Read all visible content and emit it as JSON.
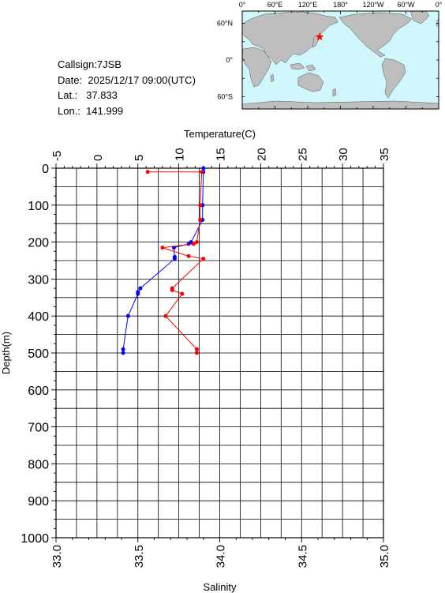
{
  "station": {
    "callsign_label": "Callsign:",
    "callsign": "7JSB",
    "date_label": "Date:",
    "date": "2025/12/17 09:00(UTC)",
    "lat_label": "Lat.:",
    "lat": "37.833",
    "lon_label": "Lon.:",
    "lon": "141.999"
  },
  "map": {
    "lon_labels": [
      "0°",
      "60°E",
      "120°E",
      "180°",
      "120°W",
      "60°W",
      "0°"
    ],
    "lat_labels": [
      "60°N",
      "0°",
      "60°S"
    ],
    "ocean_color": "#cff6fb",
    "land_color": "#bebebe",
    "marker": {
      "lat": 37.833,
      "lon": 141.999,
      "color": "#ff0000"
    }
  },
  "chart_data": {
    "type": "line",
    "title": "",
    "x_top_label": "Temperature(C)",
    "x_bottom_label": "Salinity",
    "ylabel": "Depth(m)",
    "temperature_ticks": [
      "-5",
      "0",
      "5",
      "10",
      "15",
      "20",
      "25",
      "30",
      "35"
    ],
    "salinity_ticks": [
      "33.0",
      "33.5",
      "34.0",
      "34.5",
      "35.0"
    ],
    "depth_ticks": [
      "0",
      "100",
      "200",
      "300",
      "400",
      "500",
      "600",
      "700",
      "800",
      "900",
      "1000"
    ],
    "temperature_range": [
      -5,
      35
    ],
    "salinity_range": [
      33.0,
      35.0
    ],
    "depth_range": [
      0,
      1000
    ],
    "depth_inverted": true,
    "grid": true,
    "series": [
      {
        "key": "temperature",
        "axis": "top",
        "color": "#0000ff",
        "points": [
          {
            "x": 13.0,
            "y": 0
          },
          {
            "x": 13.0,
            "y": 10
          },
          {
            "x": 12.9,
            "y": 100
          },
          {
            "x": 12.9,
            "y": 140
          },
          {
            "x": 11.5,
            "y": 200
          },
          {
            "x": 11.2,
            "y": 205
          },
          {
            "x": 9.4,
            "y": 215
          },
          {
            "x": 9.5,
            "y": 240
          },
          {
            "x": 9.5,
            "y": 245
          },
          {
            "x": 5.3,
            "y": 325
          },
          {
            "x": 5.0,
            "y": 335
          },
          {
            "x": 5.0,
            "y": 340
          },
          {
            "x": 3.8,
            "y": 400
          },
          {
            "x": 3.2,
            "y": 490
          },
          {
            "x": 3.2,
            "y": 500
          }
        ]
      },
      {
        "key": "salinity",
        "axis": "bottom",
        "color": "#ff0000",
        "points": [
          {
            "x": 33.56,
            "y": 10
          },
          {
            "x": 33.89,
            "y": 10
          },
          {
            "x": 33.88,
            "y": 100
          },
          {
            "x": 33.88,
            "y": 140
          },
          {
            "x": 33.86,
            "y": 200
          },
          {
            "x": 33.84,
            "y": 205
          },
          {
            "x": 33.65,
            "y": 215
          },
          {
            "x": 33.81,
            "y": 238
          },
          {
            "x": 33.9,
            "y": 245
          },
          {
            "x": 33.71,
            "y": 325
          },
          {
            "x": 33.71,
            "y": 330
          },
          {
            "x": 33.77,
            "y": 340
          },
          {
            "x": 33.67,
            "y": 400
          },
          {
            "x": 33.86,
            "y": 490
          },
          {
            "x": 33.86,
            "y": 500
          }
        ]
      }
    ]
  }
}
